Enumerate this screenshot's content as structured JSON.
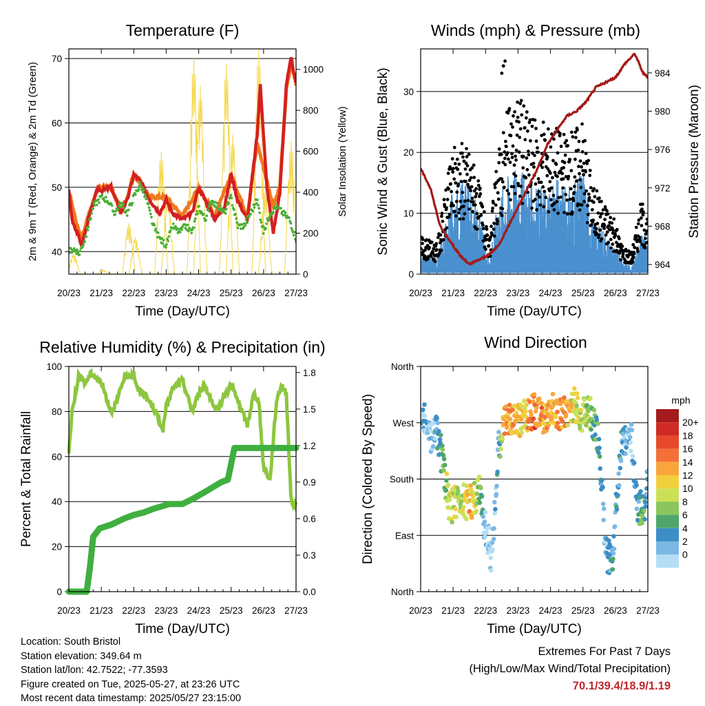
{
  "chart_data": [
    {
      "type": "line",
      "title": "Temperature (F)",
      "xlabel": "Time (Day/UTC)",
      "ylabel": "2m & 9m T (Red, Orange) & 2m Td (Green)",
      "y2label": "Solar Insolation (Yellow)",
      "x_ticks": [
        "20/23",
        "21/23",
        "22/23",
        "23/23",
        "24/23",
        "25/23",
        "26/23",
        "27/23"
      ],
      "ylim": [
        36.5,
        71.5
      ],
      "y_ticks": [
        "40",
        "50",
        "60",
        "70"
      ],
      "y2lim": [
        0,
        1100
      ],
      "y2_ticks": [
        "0",
        "200",
        "400",
        "600",
        "800",
        "1000"
      ],
      "grid": "horizontal",
      "series": [
        {
          "name": "2m T",
          "color": "#d42020",
          "axis": "left",
          "style": "line",
          "x": [
            0,
            0.1,
            0.25,
            0.4,
            0.6,
            0.9,
            1.0,
            1.3,
            1.6,
            1.8,
            2.0,
            2.2,
            2.5,
            2.8,
            3.0,
            3.2,
            3.5,
            3.8,
            4.0,
            4.2,
            4.5,
            4.8,
            5.0,
            5.2,
            5.5,
            5.8,
            5.9,
            6.1,
            6.3,
            6.5,
            6.7,
            6.85,
            7.0
          ],
          "values": [
            49.5,
            45,
            43,
            41,
            45,
            50,
            49.5,
            50,
            46,
            48,
            52,
            51,
            48,
            46,
            48,
            46,
            45,
            46,
            50,
            48,
            45,
            47,
            52,
            48,
            45,
            58,
            66,
            50,
            43,
            49,
            66,
            70,
            66
          ]
        },
        {
          "name": "9m T",
          "color": "#f07a1e",
          "axis": "left",
          "style": "line",
          "x": [
            0,
            0.25,
            0.4,
            0.6,
            0.9,
            1.3,
            1.6,
            1.8,
            2.0,
            2.5,
            3.0,
            3.5,
            4.0,
            4.5,
            5.0,
            5.5,
            5.8,
            6.1,
            6.3,
            6.5,
            6.7,
            6.85,
            7.0
          ],
          "values": [
            49.5,
            44,
            42,
            45.5,
            50,
            50,
            46.5,
            48.5,
            52,
            48.5,
            48.5,
            45.5,
            50,
            45.5,
            52,
            45.5,
            57,
            51,
            47,
            50,
            65,
            69.5,
            66
          ]
        },
        {
          "name": "2m Td",
          "color": "#4caf37",
          "axis": "left",
          "style": "points",
          "x": [
            0,
            0.15,
            0.3,
            0.5,
            0.75,
            1.0,
            1.2,
            1.4,
            1.6,
            1.8,
            2.0,
            2.2,
            2.4,
            2.6,
            2.8,
            3.0,
            3.2,
            3.4,
            3.6,
            3.8,
            4.0,
            4.2,
            4.4,
            4.6,
            4.8,
            5.0,
            5.2,
            5.4,
            5.6,
            5.8,
            6.0,
            6.2,
            6.4,
            6.6,
            6.8,
            7.0
          ],
          "values": [
            40,
            40.5,
            39.5,
            42,
            47,
            48.5,
            48,
            46,
            47.5,
            46,
            48.5,
            50.5,
            48,
            44,
            42,
            41,
            44,
            43,
            44,
            43,
            47,
            45,
            48,
            47,
            46,
            48.5,
            44,
            44,
            46,
            48,
            43,
            46,
            47,
            46,
            45,
            42
          ]
        },
        {
          "name": "Solar Insolation",
          "color": "#f5d74c",
          "axis": "right",
          "style": "spikes",
          "peaks_x": [
            0.15,
            1.05,
            1.85,
            2.05,
            2.85,
            3.05,
            3.85,
            4.05,
            4.85,
            5.05,
            5.85,
            6.05,
            6.85
          ],
          "peaks_y": [
            100,
            20,
            250,
            180,
            600,
            380,
            1060,
            920,
            1030,
            680,
            1100,
            430,
            650
          ]
        }
      ]
    },
    {
      "type": "scatter",
      "title": "Winds (mph) & Pressure (mb)",
      "xlabel": "Time (Day/UTC)",
      "ylabel": "Sonic Wind & Gust (Blue, Black)",
      "y2label": "Station Pressure (Maroon)",
      "x_ticks": [
        "20/23",
        "21/23",
        "22/23",
        "23/23",
        "24/23",
        "25/23",
        "26/23",
        "27/23"
      ],
      "ylim": [
        0,
        37
      ],
      "y_ticks": [
        "0",
        "10",
        "20",
        "30"
      ],
      "y2lim": [
        963,
        986.5
      ],
      "y2_ticks": [
        "964",
        "968",
        "972",
        "976",
        "980",
        "984"
      ],
      "grid": "horizontal",
      "series": [
        {
          "name": "Sonic Wind",
          "color": "#4a90cf",
          "axis": "left",
          "x": [
            0,
            0.5,
            0.8,
            1.0,
            1.3,
            1.6,
            1.9,
            2.1,
            2.4,
            2.7,
            3.0,
            3.3,
            3.6,
            3.9,
            4.2,
            4.5,
            4.8,
            5.0,
            5.3,
            5.6,
            5.9,
            6.2,
            6.5,
            6.8,
            7.0
          ],
          "values": [
            3,
            2,
            7,
            11,
            12,
            11,
            6,
            2,
            10,
            13,
            14,
            12,
            11,
            11,
            12,
            11,
            12,
            14,
            7,
            6,
            4,
            2,
            1,
            6,
            4
          ]
        },
        {
          "name": "Gust",
          "color": "#000000",
          "axis": "left",
          "x": [
            0,
            0.5,
            0.8,
            1.0,
            1.3,
            1.6,
            1.9,
            2.1,
            2.4,
            2.7,
            3.0,
            3.3,
            3.6,
            3.9,
            4.2,
            4.5,
            4.8,
            5.0,
            5.3,
            5.6,
            5.9,
            6.2,
            6.5,
            6.8,
            7.0
          ],
          "values": [
            5,
            4,
            12,
            17,
            18,
            16,
            10,
            4,
            17,
            22,
            24,
            22,
            20,
            20,
            20,
            18,
            20,
            21,
            12,
            10,
            8,
            4,
            3,
            10,
            7
          ],
          "max": 35
        },
        {
          "name": "Station Pressure",
          "color": "#a31a1a",
          "axis": "right",
          "x": [
            0,
            0.3,
            0.6,
            0.9,
            1.2,
            1.5,
            1.8,
            2.1,
            2.4,
            2.7,
            3.0,
            3.3,
            3.6,
            3.9,
            4.2,
            4.5,
            4.8,
            5.1,
            5.4,
            5.7,
            6.0,
            6.3,
            6.6,
            6.85,
            7.0
          ],
          "values": [
            974,
            972,
            968,
            966.5,
            965,
            964,
            964.5,
            965,
            966,
            968,
            970,
            972,
            974,
            976.5,
            978,
            979.5,
            980,
            981,
            982.5,
            983,
            983.5,
            985,
            986,
            984,
            983.5
          ]
        }
      ]
    },
    {
      "type": "line",
      "title": "Relative Humidity (%) & Precipitation (in)",
      "xlabel": "Time (Day/UTC)",
      "ylabel": "Percent & Total Rainfall",
      "x_ticks": [
        "20/23",
        "21/23",
        "22/23",
        "23/23",
        "24/23",
        "25/23",
        "26/23",
        "27/23"
      ],
      "ylim": [
        0,
        100
      ],
      "y_ticks": [
        "0",
        "20",
        "40",
        "60",
        "80",
        "100"
      ],
      "y2lim": [
        0,
        1.85
      ],
      "y2_ticks": [
        "0.0",
        "0.3",
        "0.6",
        "0.9",
        "1.2",
        "1.5",
        "1.8"
      ],
      "grid": "horizontal",
      "series": [
        {
          "name": "Relative Humidity",
          "color": "#8dc63f",
          "axis": "left",
          "x": [
            0,
            0.1,
            0.3,
            0.5,
            0.7,
            1.0,
            1.3,
            1.5,
            1.7,
            2.0,
            2.1,
            2.3,
            2.6,
            2.9,
            3.0,
            3.2,
            3.5,
            3.8,
            4.0,
            4.2,
            4.5,
            4.8,
            5.0,
            5.2,
            5.5,
            5.7,
            5.85,
            6.0,
            6.2,
            6.4,
            6.55,
            6.7,
            6.85,
            7.0
          ],
          "values": [
            62,
            80,
            96,
            93,
            97,
            93,
            80,
            85,
            95,
            97,
            90,
            88,
            82,
            72,
            82,
            90,
            94,
            80,
            88,
            92,
            80,
            87,
            92,
            85,
            74,
            88,
            85,
            55,
            50,
            85,
            92,
            88,
            40,
            38
          ]
        },
        {
          "name": "Total Rainfall",
          "color": "#3faf3f",
          "axis": "right",
          "x": [
            0,
            0.55,
            0.65,
            0.75,
            0.95,
            1.3,
            1.7,
            2.0,
            2.3,
            2.6,
            3.1,
            3.5,
            3.8,
            4.2,
            4.7,
            4.9,
            5.1,
            5.7,
            6.2,
            7.0
          ],
          "values": [
            0,
            0,
            0.2,
            0.45,
            0.52,
            0.55,
            0.6,
            0.63,
            0.65,
            0.68,
            0.72,
            0.72,
            0.76,
            0.82,
            0.9,
            0.92,
            1.18,
            1.18,
            1.18,
            1.18
          ]
        }
      ]
    },
    {
      "type": "scatter",
      "title": "Wind Direction",
      "xlabel": "Time (Day/UTC)",
      "ylabel": "Direction (Colored By Speed)",
      "x_ticks": [
        "20/23",
        "21/23",
        "22/23",
        "23/23",
        "24/23",
        "25/23",
        "26/23",
        "27/23"
      ],
      "ylim": [
        0,
        360
      ],
      "y_ticks": [
        "North",
        "East",
        "South",
        "West",
        "North"
      ],
      "grid": "horizontal",
      "legend": {
        "title": "mph",
        "labels": [
          "20+",
          "18",
          "16",
          "14",
          "12",
          "10",
          "8",
          "6",
          "4",
          "2",
          "0"
        ],
        "colors": [
          "#a51b1d",
          "#cf2a23",
          "#e7492a",
          "#f37137",
          "#f8a63c",
          "#f2cf3d",
          "#cbe057",
          "#8ac65d",
          "#4ea66a",
          "#3c8ec6",
          "#7bb8e6",
          "#b4def5"
        ],
        "placement": "right"
      },
      "series": [
        {
          "name": "Wind Direction",
          "x": [
            0.1,
            0.3,
            0.5,
            0.9,
            1.2,
            1.5,
            1.8,
            2.0,
            2.2,
            2.4,
            2.6,
            2.9,
            3.2,
            3.5,
            3.8,
            4.1,
            4.4,
            4.7,
            5.0,
            5.2,
            5.5,
            5.7,
            5.9,
            6.2,
            6.5,
            6.7,
            6.9,
            7.0
          ],
          "values": [
            275,
            240,
            260,
            135,
            150,
            140,
            160,
            100,
            50,
            230,
            275,
            270,
            280,
            290,
            275,
            290,
            285,
            300,
            280,
            290,
            240,
            60,
            50,
            250,
            240,
            130,
            140,
            180
          ],
          "speeds": [
            3,
            2,
            4,
            12,
            10,
            14,
            9,
            2,
            1,
            5,
            16,
            14,
            13,
            18,
            15,
            14,
            16,
            12,
            11,
            9,
            6,
            3,
            5,
            4,
            2,
            6,
            8,
            3
          ]
        }
      ]
    }
  ],
  "info": {
    "location": "Location: South Bristol",
    "elevation": "Station elevation: 349.64 m",
    "latlon": "Station lat/lon: 42.7522; -77.3593",
    "created": "Figure created on Tue, 2025-05-27, at 23:26 UTC",
    "latest": "Most recent data timestamp: 2025/05/27 23:15:00"
  },
  "extremes": {
    "title": "Extremes For Past 7 Days",
    "subtitle": "(High/Low/Max Wind/Total Precipitation)",
    "values": "70.1/39.4/18.9/1.19"
  }
}
